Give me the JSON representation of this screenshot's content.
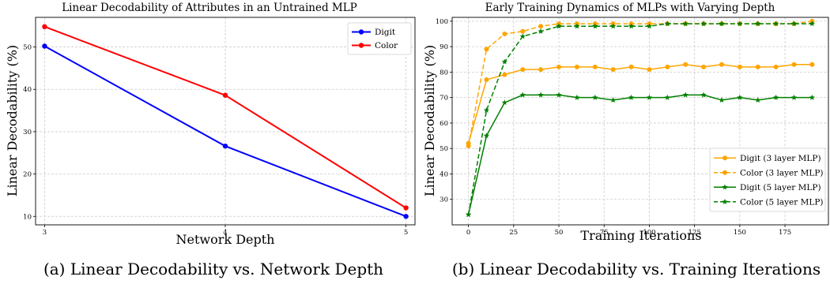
{
  "charts": [
    {
      "title": "Linear Decodability of Attributes in an Untrained MLP",
      "xlabel": "Network Depth",
      "ylabel": "Linear Decodability (%)",
      "caption": "(a) Linear Decodability vs. Network Depth",
      "xticks": [
        "3",
        "4",
        "5"
      ],
      "yticks": [
        "10",
        "20",
        "30",
        "40",
        "50"
      ]
    },
    {
      "title": "Early Training Dynamics of MLPs with Varying Depth",
      "xlabel": "Training Iterations",
      "ylabel": "Linear Decodability (%)",
      "caption": "(b) Linear Decodability vs. Training Iterations",
      "xticks": [
        "0",
        "25",
        "50",
        "75",
        "100",
        "125",
        "150",
        "175"
      ],
      "yticks": [
        "30",
        "40",
        "50",
        "60",
        "70",
        "80",
        "90",
        "100"
      ]
    }
  ],
  "chart_data": [
    {
      "type": "line",
      "title": "Linear Decodability of Attributes in an Untrained MLP",
      "xlabel": "Network Depth",
      "ylabel": "Linear Decodability (%)",
      "xlim": [
        2.95,
        5.05
      ],
      "ylim": [
        8,
        57
      ],
      "grid": true,
      "legend_position": "top-right",
      "series": [
        {
          "name": "Digit",
          "color": "#0000ff",
          "style": "solid",
          "marker": "circle",
          "x": [
            3,
            4,
            5
          ],
          "y": [
            50.2,
            26.6,
            10.0
          ]
        },
        {
          "name": "Color",
          "color": "#ff0000",
          "style": "solid",
          "marker": "circle",
          "x": [
            3,
            4,
            5
          ],
          "y": [
            54.8,
            38.6,
            12.0
          ]
        }
      ]
    },
    {
      "type": "line",
      "title": "Early Training Dynamics of MLPs with Varying Depth",
      "xlabel": "Training Iterations",
      "ylabel": "Linear Decodability (%)",
      "xlim": [
        -9,
        199
      ],
      "ylim": [
        20,
        101.5
      ],
      "grid": true,
      "legend_position": "lower-right",
      "series": [
        {
          "name": "Digit (3 layer MLP)",
          "color": "#ffa500",
          "style": "solid",
          "marker": "circle",
          "x": [
            0,
            10,
            20,
            30,
            40,
            50,
            60,
            70,
            80,
            90,
            100,
            110,
            120,
            130,
            140,
            150,
            160,
            170,
            180,
            190
          ],
          "y": [
            52,
            77,
            79,
            81,
            81,
            82,
            82,
            82,
            81,
            82,
            81,
            82,
            83,
            82,
            83,
            82,
            82,
            82,
            83,
            83
          ]
        },
        {
          "name": "Color (3 layer MLP)",
          "color": "#ffa500",
          "style": "dashed",
          "marker": "circle",
          "x": [
            0,
            10,
            20,
            30,
            40,
            50,
            60,
            70,
            80,
            90,
            100,
            110,
            120,
            130,
            140,
            150,
            160,
            170,
            180,
            190
          ],
          "y": [
            51,
            89,
            95,
            96,
            98,
            99,
            99,
            99,
            99,
            99,
            99,
            99,
            99,
            99,
            99,
            99,
            99,
            99,
            99,
            100
          ]
        },
        {
          "name": "Digit (5 layer MLP)",
          "color": "#008000",
          "style": "solid",
          "marker": "star",
          "x": [
            0,
            10,
            20,
            30,
            40,
            50,
            60,
            70,
            80,
            90,
            100,
            110,
            120,
            130,
            140,
            150,
            160,
            170,
            180,
            190
          ],
          "y": [
            24,
            55,
            68,
            71,
            71,
            71,
            70,
            70,
            69,
            70,
            70,
            70,
            71,
            71,
            69,
            70,
            69,
            70,
            70,
            70
          ]
        },
        {
          "name": "Color (5 layer MLP)",
          "color": "#008000",
          "style": "dashed",
          "marker": "star",
          "x": [
            0,
            10,
            20,
            30,
            40,
            50,
            60,
            70,
            80,
            90,
            100,
            110,
            120,
            130,
            140,
            150,
            160,
            170,
            180,
            190
          ],
          "y": [
            24,
            65,
            84,
            94,
            96,
            98,
            98,
            98,
            98,
            98,
            98,
            99,
            99,
            99,
            99,
            99,
            99,
            99,
            99,
            99
          ]
        }
      ]
    }
  ]
}
